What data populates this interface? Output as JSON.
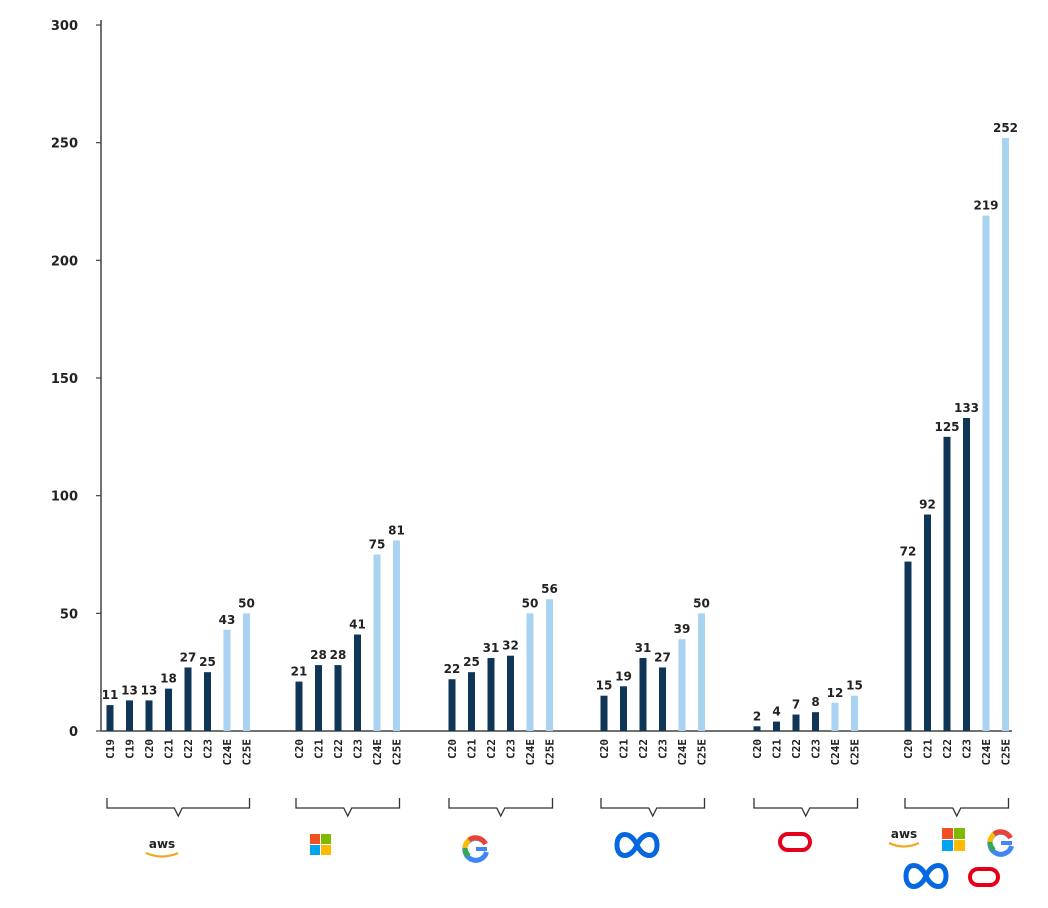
{
  "chart_data": {
    "type": "bar",
    "title": "",
    "xlabel": "",
    "ylabel": "",
    "ylim": [
      0,
      300
    ],
    "yticks": [
      0,
      50,
      100,
      150,
      200,
      250,
      300
    ],
    "ytick_labels": [
      "0",
      "50",
      "100",
      "150",
      "200",
      "250",
      "300"
    ],
    "grid": false,
    "legend": "none",
    "colors": {
      "actual": "#0f3656",
      "estimate": "#a9d3f0",
      "axis": "#444444"
    },
    "groups": [
      {
        "company": "AWS",
        "logo": "aws-logo",
        "categories": [
          "C19",
          "C19",
          "C20",
          "C21",
          "C22",
          "C23",
          "C24E",
          "C25E"
        ],
        "values": [
          11,
          13,
          13,
          18,
          27,
          25,
          43,
          50
        ],
        "labels": [
          "11",
          "13",
          "13",
          "18",
          "27",
          "25",
          "43",
          "50"
        ],
        "estimate": [
          false,
          false,
          false,
          false,
          false,
          false,
          true,
          true
        ]
      },
      {
        "company": "Microsoft",
        "logo": "microsoft-logo",
        "categories": [
          "C20",
          "C21",
          "C22",
          "C23",
          "C24E",
          "C25E"
        ],
        "values": [
          21,
          28,
          28,
          41,
          75,
          81
        ],
        "labels": [
          "21",
          "28",
          "28",
          "41",
          "75",
          "81"
        ],
        "estimate": [
          false,
          false,
          false,
          false,
          true,
          true
        ]
      },
      {
        "company": "Google",
        "logo": "google-logo",
        "categories": [
          "C20",
          "C21",
          "C22",
          "C23",
          "C24E",
          "C25E"
        ],
        "values": [
          22,
          25,
          31,
          32,
          50,
          56
        ],
        "labels": [
          "22",
          "25",
          "31",
          "32",
          "50",
          "56"
        ],
        "estimate": [
          false,
          false,
          false,
          false,
          true,
          true
        ]
      },
      {
        "company": "Meta",
        "logo": "meta-logo",
        "categories": [
          "C20",
          "C21",
          "C22",
          "C23",
          "C24E",
          "C25E"
        ],
        "values": [
          15,
          19,
          31,
          27,
          39,
          50
        ],
        "labels": [
          "15",
          "19",
          "31",
          "27",
          "39",
          "50"
        ],
        "estimate": [
          false,
          false,
          false,
          false,
          true,
          true
        ]
      },
      {
        "company": "Oracle",
        "logo": "oracle-logo",
        "categories": [
          "C20",
          "C21",
          "C22",
          "C23",
          "C24E",
          "C25E"
        ],
        "values": [
          2,
          4,
          7,
          8,
          12,
          15
        ],
        "labels": [
          "2",
          "4",
          "7",
          "8",
          "12",
          "15"
        ],
        "estimate": [
          false,
          false,
          false,
          false,
          true,
          true
        ]
      },
      {
        "company": "Total",
        "logo": "combined-logos",
        "categories": [
          "C20",
          "C21",
          "C22",
          "C23",
          "C24E",
          "C25E"
        ],
        "values": [
          72,
          92,
          125,
          133,
          219,
          252
        ],
        "labels": [
          "72",
          "92",
          "125",
          "133",
          "219",
          "252"
        ],
        "estimate": [
          false,
          false,
          false,
          false,
          true,
          true
        ]
      }
    ]
  },
  "logos": {
    "aws_text": "aws",
    "total_aws_text": "aws"
  }
}
